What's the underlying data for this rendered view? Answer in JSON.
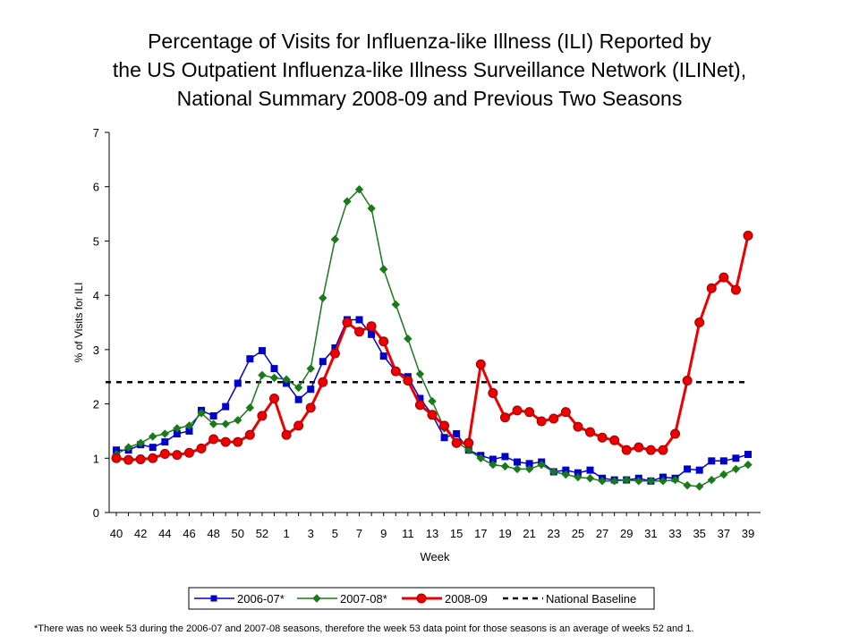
{
  "title_lines": [
    "Percentage of Visits for Influenza-like Illness (ILI) Reported by",
    "the US Outpatient Influenza-like Illness Surveillance Network (ILINet),",
    "National Summary 2008-09 and Previous Two Seasons"
  ],
  "footnote": "*There was no week 53 during the 2006-07 and 2007-08 seasons, therefore the week 53 data point for those seasons is an average of weeks 52 and 1.",
  "chart_data": {
    "type": "line",
    "xlabel": "Week",
    "ylabel": "% of Visits for ILI",
    "ylim": [
      0,
      7
    ],
    "yticks": [
      0,
      1,
      2,
      3,
      4,
      5,
      6,
      7
    ],
    "grid": false,
    "legend_position": "bottom",
    "x": [
      "40",
      "41",
      "42",
      "43",
      "44",
      "45",
      "46",
      "47",
      "48",
      "49",
      "50",
      "51",
      "52",
      "53",
      "1",
      "2",
      "3",
      "4",
      "5",
      "6",
      "7",
      "8",
      "9",
      "10",
      "11",
      "12",
      "13",
      "14",
      "15",
      "16",
      "17",
      "18",
      "19",
      "20",
      "21",
      "22",
      "23",
      "24",
      "25",
      "26",
      "27",
      "28",
      "29",
      "30",
      "31",
      "32",
      "33",
      "34",
      "35",
      "36",
      "37",
      "38",
      "39"
    ],
    "x_tick_labels": [
      "40",
      "42",
      "44",
      "46",
      "48",
      "50",
      "52",
      "1",
      "3",
      "5",
      "7",
      "9",
      "11",
      "13",
      "15",
      "17",
      "19",
      "21",
      "23",
      "25",
      "27",
      "29",
      "31",
      "33",
      "35",
      "37",
      "39"
    ],
    "series": [
      {
        "name": "2006-07*",
        "color": "#0000CC",
        "marker": "square",
        "values": [
          1.15,
          1.15,
          1.25,
          1.2,
          1.3,
          1.45,
          1.5,
          1.88,
          1.78,
          1.95,
          2.38,
          2.83,
          2.98,
          2.65,
          2.38,
          2.08,
          2.27,
          2.78,
          3.03,
          3.55,
          3.55,
          3.28,
          2.88,
          2.6,
          2.5,
          2.1,
          1.8,
          1.38,
          1.45,
          1.15,
          1.05,
          0.98,
          1.03,
          0.93,
          0.9,
          0.93,
          0.75,
          0.78,
          0.73,
          0.78,
          0.63,
          0.6,
          0.6,
          0.63,
          0.58,
          0.65,
          0.63,
          0.8,
          0.78,
          0.95,
          0.95,
          1.0,
          1.07
        ]
      },
      {
        "name": "2007-08*",
        "color": "#1A7A1A",
        "marker": "diamond",
        "values": [
          1.07,
          1.2,
          1.28,
          1.4,
          1.45,
          1.55,
          1.6,
          1.83,
          1.63,
          1.63,
          1.7,
          1.93,
          2.53,
          2.48,
          2.45,
          2.3,
          2.65,
          3.95,
          5.03,
          5.73,
          5.95,
          5.6,
          4.48,
          3.83,
          3.2,
          2.55,
          2.05,
          1.55,
          1.3,
          1.15,
          1.0,
          0.88,
          0.85,
          0.8,
          0.8,
          0.88,
          0.75,
          0.7,
          0.65,
          0.63,
          0.58,
          0.58,
          0.6,
          0.58,
          0.58,
          0.58,
          0.6,
          0.5,
          0.48,
          0.6,
          0.7,
          0.8,
          0.88
        ]
      },
      {
        "name": "2008-09",
        "color": "#EE0000",
        "marker": "circle",
        "values": [
          1.0,
          0.97,
          0.98,
          1.0,
          1.08,
          1.06,
          1.1,
          1.18,
          1.35,
          1.3,
          1.3,
          1.43,
          1.78,
          2.1,
          1.43,
          1.6,
          1.93,
          2.4,
          2.93,
          3.5,
          3.33,
          3.43,
          3.15,
          2.6,
          2.43,
          1.98,
          1.8,
          1.6,
          1.28,
          1.28,
          2.73,
          2.2,
          1.75,
          1.88,
          1.85,
          1.68,
          1.73,
          1.85,
          1.58,
          1.48,
          1.38,
          1.33,
          1.15,
          1.2,
          1.15,
          1.15,
          1.45,
          2.43,
          3.5,
          4.13,
          4.33,
          4.1,
          5.1
        ]
      }
    ],
    "baseline": {
      "name": "National Baseline",
      "value": 2.4,
      "color": "#000000",
      "style": "dashed"
    }
  }
}
